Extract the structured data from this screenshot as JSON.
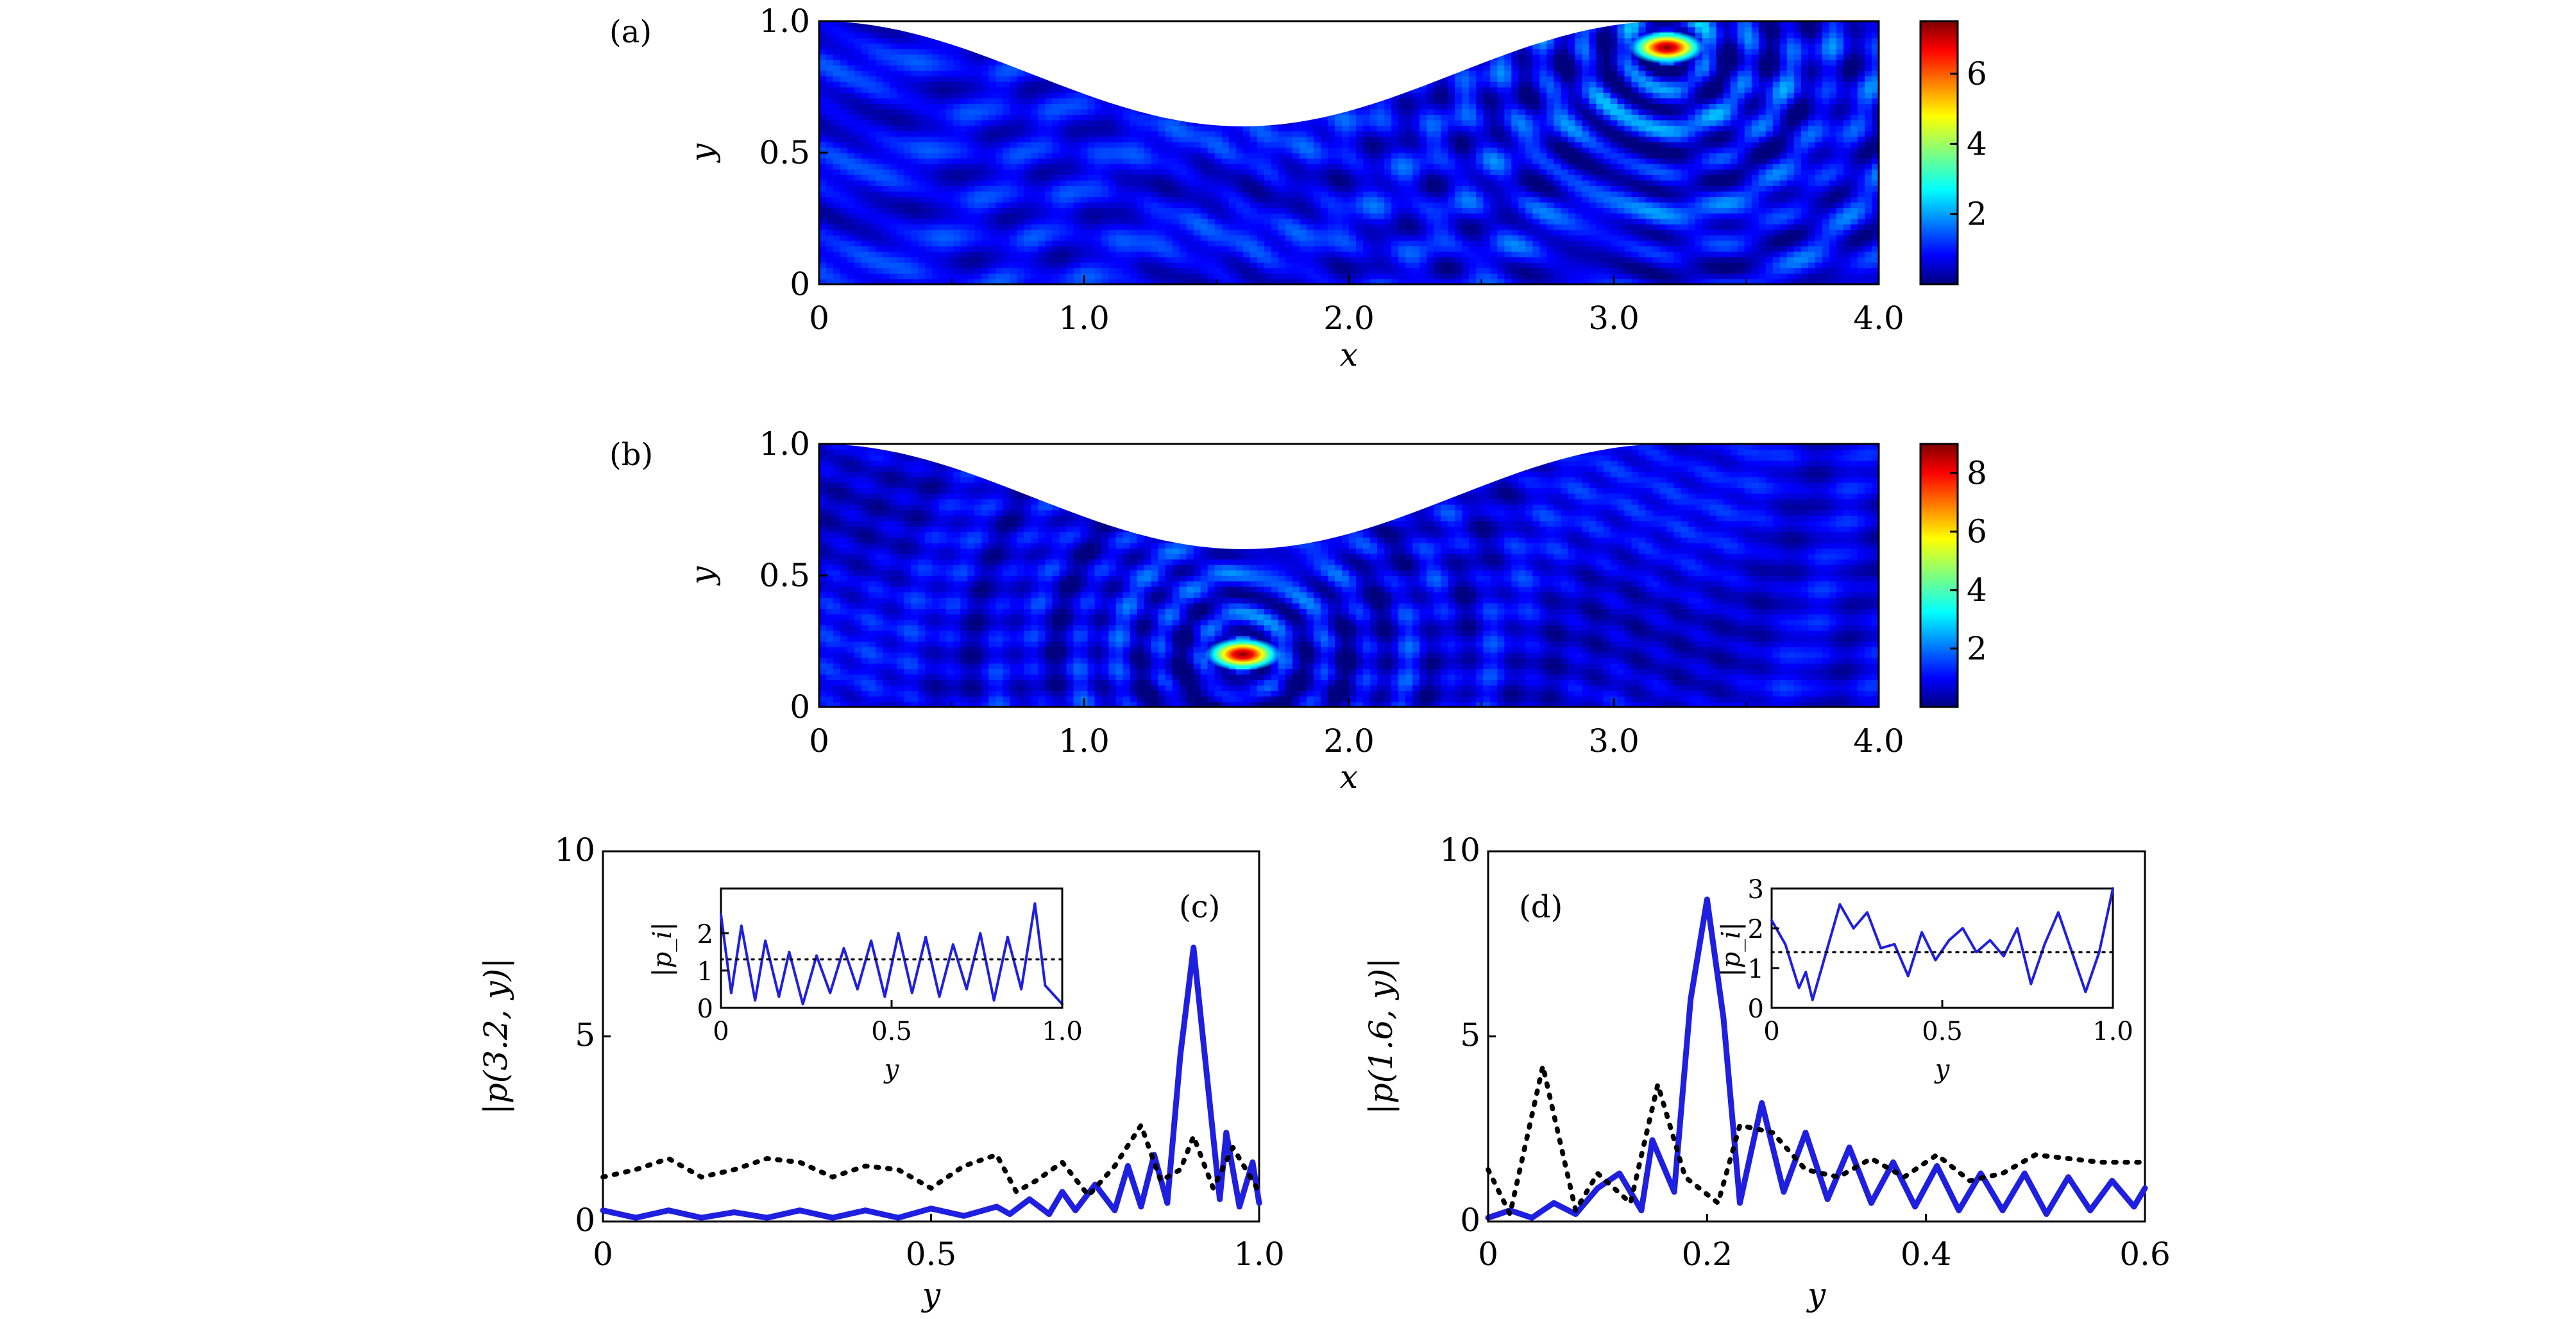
{
  "colors": {
    "jet": [
      "#00007f",
      "#0000ff",
      "#007fff",
      "#00ffff",
      "#7fff7f",
      "#ffff00",
      "#ff7f00",
      "#ff0000",
      "#7f0000"
    ],
    "solid_line": "#1f1fe0",
    "dotted_line": "#000000"
  },
  "chart_data": [
    {
      "panel_label": "(a)",
      "type": "heatmap",
      "xlabel": "x",
      "ylabel": "y",
      "xlim": [
        0,
        4.0
      ],
      "ylim": [
        0,
        1.0
      ],
      "xticks": [
        0,
        1.0,
        2.0,
        3.0,
        4.0
      ],
      "xtick_labels": [
        "0",
        "1.0",
        "2.0",
        "3.0",
        "4.0"
      ],
      "yticks": [
        0,
        0.5,
        1.0
      ],
      "ytick_labels": [
        "0",
        "0.5",
        "1.0"
      ],
      "colorbar": {
        "range": [
          0,
          7.5
        ],
        "ticks": [
          2,
          4,
          6
        ],
        "tick_labels": [
          "2",
          "4",
          "6"
        ]
      },
      "upper_boundary": "cosine dip, minimum about 0.6 at x = 1.6",
      "hotspot": {
        "x": 3.2,
        "y": 0.9,
        "value": 7.4
      }
    },
    {
      "panel_label": "(b)",
      "type": "heatmap",
      "xlabel": "x",
      "ylabel": "y",
      "xlim": [
        0,
        4.0
      ],
      "ylim": [
        0,
        1.0
      ],
      "xticks": [
        0,
        1.0,
        2.0,
        3.0,
        4.0
      ],
      "xtick_labels": [
        "0",
        "1.0",
        "2.0",
        "3.0",
        "4.0"
      ],
      "yticks": [
        0,
        0.5,
        1.0
      ],
      "ytick_labels": [
        "0",
        "0.5",
        "1.0"
      ],
      "colorbar": {
        "range": [
          0,
          9
        ],
        "ticks": [
          2,
          4,
          6,
          8
        ],
        "tick_labels": [
          "2",
          "4",
          "6",
          "8"
        ]
      },
      "upper_boundary": "cosine dip, minimum about 0.6 at x = 1.6",
      "hotspot": {
        "x": 1.6,
        "y": 0.2,
        "value": 8.7
      }
    },
    {
      "panel_label": "(c)",
      "type": "line",
      "xlabel": "y",
      "ylabel": "|p(3.2, y)|",
      "xlim": [
        0,
        1.0
      ],
      "ylim": [
        0,
        10
      ],
      "xticks": [
        0,
        0.5,
        1.0
      ],
      "xtick_labels": [
        "0",
        "0.5",
        "1.0"
      ],
      "yticks": [
        0,
        5,
        10
      ],
      "ytick_labels": [
        "0",
        "5",
        "10"
      ],
      "series": [
        {
          "style": "solid",
          "x": [
            0,
            0.05,
            0.1,
            0.15,
            0.2,
            0.25,
            0.3,
            0.35,
            0.4,
            0.45,
            0.5,
            0.55,
            0.6,
            0.62,
            0.65,
            0.68,
            0.7,
            0.72,
            0.75,
            0.78,
            0.8,
            0.82,
            0.84,
            0.86,
            0.88,
            0.9,
            0.92,
            0.94,
            0.95,
            0.97,
            0.99,
            1.0
          ],
          "y": [
            0.3,
            0.1,
            0.3,
            0.1,
            0.25,
            0.1,
            0.3,
            0.1,
            0.3,
            0.1,
            0.35,
            0.15,
            0.4,
            0.2,
            0.6,
            0.2,
            0.8,
            0.3,
            1.0,
            0.3,
            1.5,
            0.4,
            1.8,
            0.5,
            4.5,
            7.4,
            4.0,
            0.6,
            2.4,
            0.4,
            1.6,
            0.5
          ]
        },
        {
          "style": "dotted",
          "x": [
            0,
            0.05,
            0.1,
            0.15,
            0.2,
            0.25,
            0.3,
            0.35,
            0.4,
            0.45,
            0.5,
            0.55,
            0.6,
            0.63,
            0.66,
            0.7,
            0.74,
            0.78,
            0.82,
            0.85,
            0.88,
            0.9,
            0.93,
            0.96,
            1.0
          ],
          "y": [
            1.2,
            1.4,
            1.7,
            1.2,
            1.4,
            1.7,
            1.6,
            1.2,
            1.5,
            1.4,
            0.9,
            1.5,
            1.8,
            0.8,
            1.1,
            1.6,
            0.7,
            1.5,
            2.6,
            1.1,
            1.4,
            2.3,
            0.9,
            2.0,
            0.8
          ]
        }
      ],
      "inset": {
        "xlabel": "y",
        "ylabel": "|p_i|",
        "xlim": [
          0,
          1.0
        ],
        "ylim": [
          0,
          3.2
        ],
        "xticks": [
          0,
          0.5,
          1.0
        ],
        "xtick_labels": [
          "0",
          "0.5",
          "1.0"
        ],
        "yticks": [
          0,
          1,
          2
        ],
        "ytick_labels": [
          "0",
          "1",
          "2"
        ],
        "series": [
          {
            "style": "solid",
            "x": [
              0,
              0.03,
              0.06,
              0.1,
              0.13,
              0.17,
              0.2,
              0.24,
              0.28,
              0.32,
              0.36,
              0.4,
              0.44,
              0.48,
              0.52,
              0.56,
              0.6,
              0.64,
              0.68,
              0.72,
              0.76,
              0.8,
              0.84,
              0.88,
              0.92,
              0.95,
              1.0
            ],
            "y": [
              2.5,
              0.4,
              2.2,
              0.2,
              1.8,
              0.3,
              1.5,
              0.1,
              1.4,
              0.4,
              1.6,
              0.5,
              1.8,
              0.3,
              2.0,
              0.4,
              1.9,
              0.3,
              1.7,
              0.5,
              2.0,
              0.2,
              1.9,
              0.5,
              2.8,
              0.6,
              0.1
            ]
          },
          {
            "style": "dotted",
            "x": [
              0,
              1.0
            ],
            "y": [
              1.3,
              1.3
            ]
          }
        ]
      }
    },
    {
      "panel_label": "(d)",
      "type": "line",
      "xlabel": "y",
      "ylabel": "|p(1.6, y)|",
      "xlim": [
        0,
        0.6
      ],
      "ylim": [
        0,
        10
      ],
      "xticks": [
        0,
        0.2,
        0.4,
        0.6
      ],
      "xtick_labels": [
        "0",
        "0.2",
        "0.4",
        "0.6"
      ],
      "yticks": [
        0,
        5,
        10
      ],
      "ytick_labels": [
        "0",
        "5",
        "10"
      ],
      "series": [
        {
          "style": "solid",
          "x": [
            0,
            0.02,
            0.04,
            0.06,
            0.08,
            0.1,
            0.12,
            0.14,
            0.15,
            0.17,
            0.185,
            0.2,
            0.215,
            0.23,
            0.25,
            0.27,
            0.29,
            0.31,
            0.33,
            0.35,
            0.37,
            0.39,
            0.41,
            0.43,
            0.45,
            0.47,
            0.49,
            0.51,
            0.53,
            0.55,
            0.57,
            0.59,
            0.6
          ],
          "y": [
            0.1,
            0.3,
            0.1,
            0.5,
            0.2,
            0.9,
            1.3,
            0.3,
            2.2,
            0.8,
            6.0,
            8.7,
            5.5,
            0.5,
            3.2,
            0.8,
            2.4,
            0.6,
            2.0,
            0.5,
            1.6,
            0.4,
            1.5,
            0.3,
            1.3,
            0.3,
            1.3,
            0.2,
            1.2,
            0.3,
            1.1,
            0.4,
            0.9
          ]
        },
        {
          "style": "dotted",
          "x": [
            0,
            0.02,
            0.05,
            0.08,
            0.1,
            0.13,
            0.155,
            0.18,
            0.21,
            0.23,
            0.26,
            0.29,
            0.32,
            0.35,
            0.38,
            0.41,
            0.44,
            0.47,
            0.5,
            0.53,
            0.56,
            0.6
          ],
          "y": [
            1.4,
            0.2,
            4.2,
            0.3,
            1.3,
            0.5,
            3.7,
            1.2,
            0.5,
            2.6,
            2.4,
            1.4,
            1.2,
            1.7,
            1.2,
            1.8,
            1.1,
            1.3,
            1.8,
            1.7,
            1.6,
            1.6
          ]
        }
      ],
      "inset": {
        "xlabel": "y",
        "ylabel": "|p_i|",
        "xlim": [
          0,
          1.0
        ],
        "ylim": [
          0,
          3.0
        ],
        "xticks": [
          0,
          0.5,
          1.0
        ],
        "xtick_labels": [
          "0",
          "0.5",
          "1.0"
        ],
        "yticks": [
          0,
          1,
          2,
          3
        ],
        "ytick_labels": [
          "0",
          "1",
          "2",
          "3"
        ],
        "series": [
          {
            "style": "solid",
            "x": [
              0,
              0.04,
              0.08,
              0.1,
              0.12,
              0.16,
              0.2,
              0.24,
              0.28,
              0.32,
              0.36,
              0.4,
              0.44,
              0.48,
              0.52,
              0.56,
              0.6,
              0.64,
              0.68,
              0.72,
              0.76,
              0.8,
              0.84,
              0.88,
              0.92,
              0.96,
              1.0
            ],
            "y": [
              2.2,
              1.6,
              0.5,
              0.9,
              0.2,
              1.4,
              2.6,
              2.0,
              2.4,
              1.5,
              1.6,
              0.8,
              1.9,
              1.2,
              1.7,
              2.0,
              1.4,
              1.7,
              1.3,
              2.0,
              0.6,
              1.6,
              2.4,
              1.4,
              0.4,
              1.4,
              3.0
            ]
          },
          {
            "style": "dotted",
            "x": [
              0,
              1.0
            ],
            "y": [
              1.4,
              1.4
            ]
          }
        ]
      }
    }
  ]
}
